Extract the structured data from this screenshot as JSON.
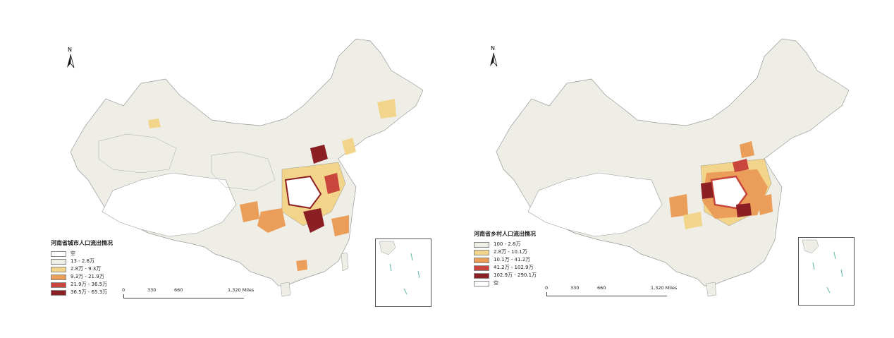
{
  "maps": [
    {
      "id": "urban",
      "north_label": "N",
      "legend_title": "河南省城市人口流出情况",
      "legend": [
        {
          "label": "空",
          "color": "#ffffff"
        },
        {
          "label": "13 - 2.8万",
          "color": "#efefe6"
        },
        {
          "label": "2.8万 - 9.3万",
          "color": "#f2d58a"
        },
        {
          "label": "9.3万 - 21.9万",
          "color": "#eb9e5a"
        },
        {
          "label": "21.9万 - 36.5万",
          "color": "#c8463c"
        },
        {
          "label": "36.5万 - 65.3万",
          "color": "#8c1f23"
        }
      ],
      "scale_labels": [
        "0",
        "330",
        "660",
        "1,320 Miles"
      ]
    },
    {
      "id": "rural",
      "north_label": "N",
      "legend_title": "河南省乡村人口流出情况",
      "legend": [
        {
          "label": "100 - 2.8万",
          "color": "#efefe6"
        },
        {
          "label": "2.8万 - 10.1万",
          "color": "#f2d58a"
        },
        {
          "label": "10.1万 - 41.2万",
          "color": "#eb9e5a"
        },
        {
          "label": "41.2万 - 102.9万",
          "color": "#c8463c"
        },
        {
          "label": "102.9万 - 290.1万",
          "color": "#8c1f23"
        },
        {
          "label": "空",
          "color": "#ffffff"
        }
      ],
      "scale_labels": [
        "0",
        "330",
        "660",
        "1,320 Miles"
      ]
    }
  ]
}
